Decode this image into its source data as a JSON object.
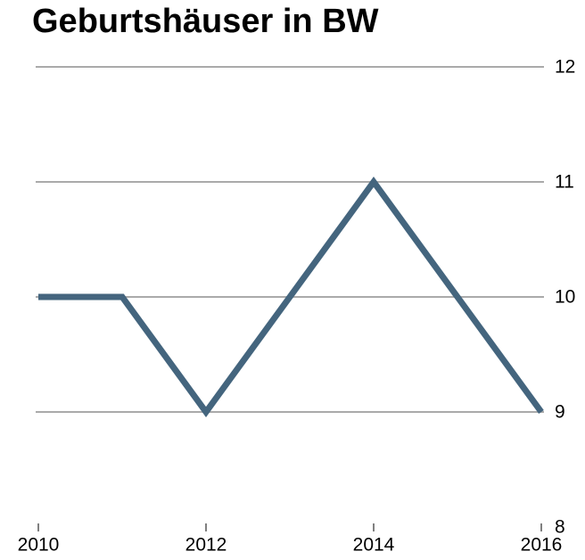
{
  "chart_data": {
    "type": "line",
    "title": "Geburtshäuser in BW",
    "x": [
      2010,
      2011,
      2012,
      2013,
      2014,
      2015,
      2016
    ],
    "series": [
      {
        "name": "Geburtshäuser",
        "color": "#44657e",
        "values": [
          10,
          10,
          9,
          10,
          11,
          10,
          9
        ]
      }
    ],
    "xlim": [
      2010,
      2016
    ],
    "xticks": [
      2010,
      2012,
      2014,
      2016
    ],
    "ylim": [
      8,
      12
    ],
    "yticks": [
      8,
      9,
      10,
      11,
      12
    ],
    "grid": true
  }
}
